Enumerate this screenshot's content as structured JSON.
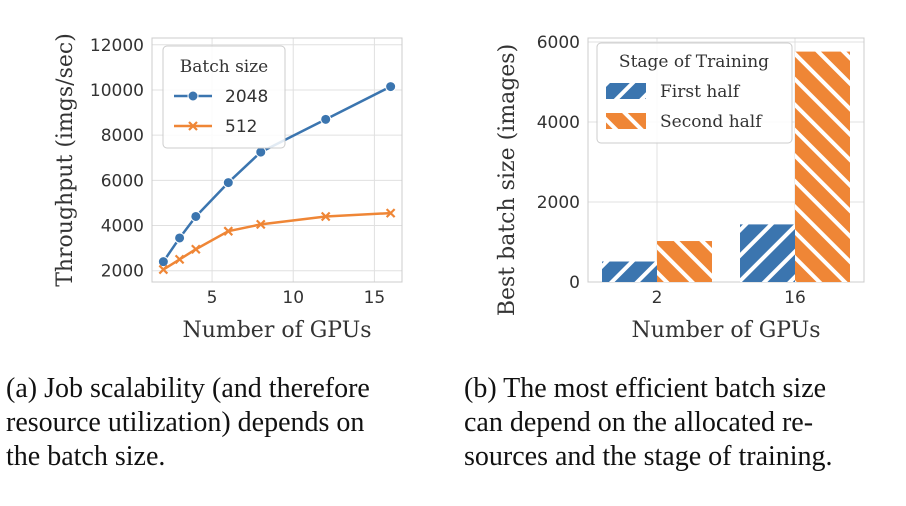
{
  "chart_data": [
    {
      "type": "line",
      "xlabel": "Number of GPUs",
      "ylabel": "Throughput (imgs/sec)",
      "xlim": [
        1.3,
        16.7
      ],
      "ylim": [
        1500,
        12300
      ],
      "xticks": [
        5,
        10,
        15
      ],
      "yticks": [
        2000,
        4000,
        6000,
        8000,
        10000,
        12000
      ],
      "grid": true,
      "legend": {
        "title": "Batch size",
        "placement": "top-left"
      },
      "series": [
        {
          "name": "2048",
          "color": "#3b75af",
          "marker": "circle",
          "x": [
            2,
            3,
            4,
            6,
            8,
            12,
            16
          ],
          "y": [
            2400,
            3450,
            4400,
            5900,
            7250,
            8700,
            10150
          ]
        },
        {
          "name": "512",
          "color": "#ef8636",
          "marker": "x",
          "x": [
            2,
            3,
            4,
            6,
            8,
            12,
            16
          ],
          "y": [
            2050,
            2500,
            2950,
            3750,
            4050,
            4400,
            4550
          ]
        }
      ]
    },
    {
      "type": "bar",
      "xlabel": "Number of GPUs",
      "ylabel": "Best batch size (images)",
      "categories": [
        "2",
        "16"
      ],
      "ylim": [
        0,
        6100
      ],
      "yticks": [
        0,
        2000,
        4000,
        6000
      ],
      "grid": true,
      "legend": {
        "title": "Stage of Training",
        "placement": "top-left"
      },
      "series": [
        {
          "name": "First half",
          "color": "#3b75af",
          "hatch": "/",
          "values": [
            512,
            1440
          ]
        },
        {
          "name": "Second half",
          "color": "#ef8636",
          "hatch": "\\",
          "values": [
            1024,
            5760
          ]
        }
      ]
    }
  ],
  "captions": {
    "a": [
      "(a) Job scalability (and therefore",
      "resource utilization) depends on",
      "the batch size."
    ],
    "b": [
      "(b) The most efficient batch size",
      "can depend on the allocated re-",
      "sources and the stage of training."
    ]
  }
}
